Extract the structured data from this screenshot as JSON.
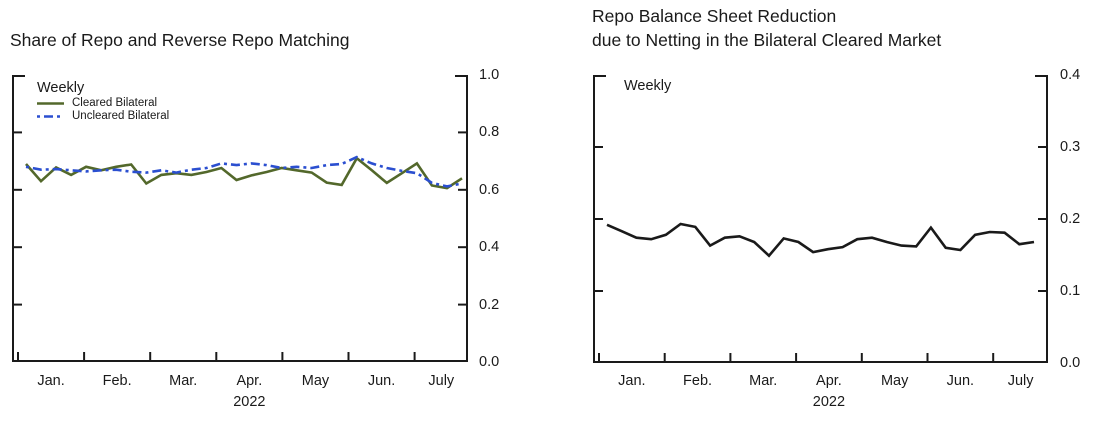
{
  "page": {
    "background": "#ffffff"
  },
  "colors": {
    "axis": "#1a1a1a",
    "text": "#1a1a1a",
    "cleared_bilateral": "#53682B",
    "uncleared_bilateral": "#2B4FD0",
    "netting_line": "#1A1A1A"
  },
  "chart_data": [
    {
      "type": "line",
      "title_lines": [
        "Share of Repo and Reverse Repo Matching"
      ],
      "frequency_label": "Weekly",
      "grid": false,
      "legend_position": "top-left",
      "x_axis": {
        "tick_labels": [
          "Jan.",
          "Feb.",
          "Mar.",
          "Apr.",
          "May",
          "Jun.",
          "July"
        ],
        "year_label": "2022",
        "unit": "weekly"
      },
      "y_axis": {
        "side": "right",
        "range": [
          0.0,
          1.0
        ],
        "tick_labels": [
          "1.0",
          "0.8",
          "0.6",
          "0.4",
          "0.2",
          "0.0"
        ]
      },
      "series": [
        {
          "name": "Cleared Bilateral",
          "color": "#53682B",
          "line_style": "solid",
          "values": [
            0.69,
            0.63,
            0.678,
            0.652,
            0.68,
            0.668,
            0.68,
            0.688,
            0.622,
            0.652,
            0.658,
            0.652,
            0.662,
            0.676,
            0.634,
            0.65,
            0.662,
            0.676,
            0.668,
            0.66,
            0.625,
            0.617,
            0.71,
            0.668,
            0.624,
            0.658,
            0.692,
            0.615,
            0.606,
            0.64
          ]
        },
        {
          "name": "Uncleared Bilateral",
          "color": "#2B4FD0",
          "line_style": "dash-dot",
          "values": [
            0.68,
            0.67,
            0.672,
            0.668,
            0.664,
            0.668,
            0.67,
            0.663,
            0.66,
            0.668,
            0.66,
            0.67,
            0.676,
            0.692,
            0.686,
            0.692,
            0.686,
            0.676,
            0.68,
            0.676,
            0.686,
            0.69,
            0.714,
            0.692,
            0.676,
            0.666,
            0.658,
            0.624,
            0.612,
            0.622
          ]
        }
      ]
    },
    {
      "type": "line",
      "title_lines": [
        "Repo Balance Sheet Reduction",
        "due to Netting in the Bilateral Cleared Market"
      ],
      "frequency_label": "Weekly",
      "grid": false,
      "legend_position": "none",
      "x_axis": {
        "tick_labels": [
          "Jan.",
          "Feb.",
          "Mar.",
          "Apr.",
          "May",
          "Jun.",
          "July"
        ],
        "year_label": "2022",
        "unit": "weekly"
      },
      "y_axis": {
        "side": "right",
        "range": [
          0.0,
          0.4
        ],
        "tick_labels": [
          "0.4",
          "0.3",
          "0.2",
          "0.1",
          "0.0"
        ]
      },
      "series": [
        {
          "name": "Weekly",
          "color": "#1A1A1A",
          "line_style": "solid",
          "values": [
            0.192,
            0.183,
            0.174,
            0.172,
            0.178,
            0.193,
            0.189,
            0.163,
            0.174,
            0.176,
            0.168,
            0.149,
            0.173,
            0.168,
            0.154,
            0.158,
            0.161,
            0.172,
            0.174,
            0.168,
            0.163,
            0.162,
            0.188,
            0.16,
            0.157,
            0.178,
            0.182,
            0.181,
            0.165,
            0.168
          ]
        }
      ]
    }
  ]
}
